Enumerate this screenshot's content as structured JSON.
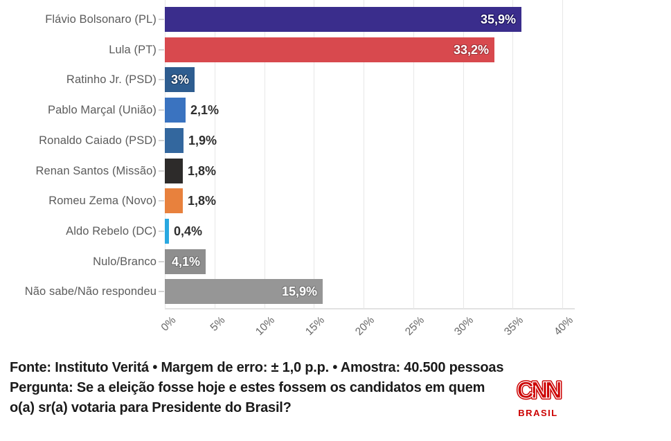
{
  "chart_data": {
    "type": "bar",
    "orientation": "horizontal",
    "title": "",
    "categories": [
      "Flávio Bolsonaro (PL)",
      "Lula (PT)",
      "Ratinho Jr. (PSD)",
      "Pablo Marçal (União)",
      "Ronaldo Caiado (PSD)",
      "Renan Santos (Missão)",
      "Romeu Zema (Novo)",
      "Aldo Rebelo (DC)",
      "Nulo/Branco",
      "Não sabe/Não respondeu"
    ],
    "values": [
      35.9,
      33.2,
      3.0,
      2.1,
      1.9,
      1.8,
      1.8,
      0.4,
      4.1,
      15.9
    ],
    "value_labels": [
      "35,9%",
      "33,2%",
      "3%",
      "2,1%",
      "1,9%",
      "1,8%",
      "1,8%",
      "0,4%",
      "4,1%",
      "15,9%"
    ],
    "bar_colors": [
      "#3a2d8c",
      "#d8494e",
      "#2e5d90",
      "#3a73c0",
      "#33679e",
      "#2d2b2a",
      "#e8813d",
      "#29a8e0",
      "#8e8e8e",
      "#969696"
    ],
    "value_label_inside": [
      true,
      true,
      true,
      false,
      false,
      false,
      false,
      false,
      true,
      true
    ],
    "value_label_outline_colors": [
      "#1e1560",
      "#a5343a",
      "#1c3d63",
      "",
      "",
      "",
      "",
      "",
      "#6f6f6f",
      "#777777"
    ],
    "xlim": [
      0,
      40
    ],
    "x_tick_labels": [
      "0%",
      "5%",
      "10%",
      "15%",
      "20%",
      "25%",
      "30%",
      "35%",
      "40%"
    ],
    "grid": "vertical gridlines on, light gray",
    "legend": "none"
  },
  "footer": {
    "source": "Fonte: Instituto Veritá • Margem de erro: ± 1,0 p.p. • Amostra: 40.500 pessoas",
    "question": "Pergunta: Se a eleição fosse hoje e estes fossem os candidatos em quem o(a) sr(a) votaria para Presidente do Brasil?"
  },
  "branding": {
    "logo_text": "CNN",
    "sublabel": "BRASIL",
    "brand_color": "#cc0000"
  },
  "colors": {
    "background": "#ffffff",
    "category_label": "#5b5b5b",
    "tick_label": "#666666",
    "gridline": "#e7e7e7",
    "value_label_outside": "#2e2e2e",
    "value_label_inside": "#ffffff",
    "footer_text": "#1a1a1a"
  }
}
